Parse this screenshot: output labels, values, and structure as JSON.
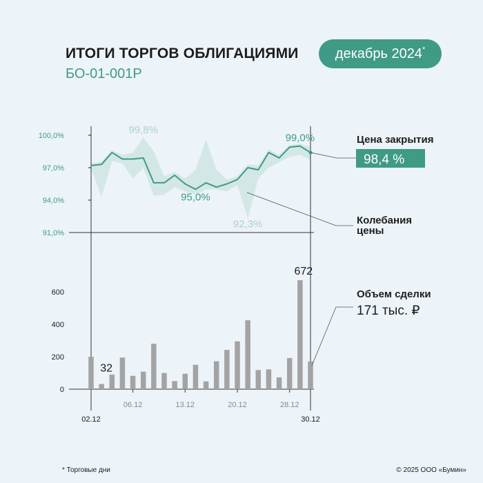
{
  "header": {
    "title": "ИТОГИ ТОРГОВ ОБЛИГАЦИЯМИ",
    "subtitle": "БО-01-001Р",
    "period": "декабрь 2024",
    "period_mark": "*"
  },
  "legend": {
    "close_price_label": "Цена закрытия",
    "close_price_value": "98,4 %",
    "range_label_line1": "Колебания",
    "range_label_line2": "цены",
    "volume_label": "Объем сделки",
    "volume_value": "171 тыс. ₽"
  },
  "footer": {
    "footnote": "* Торговые дни",
    "copyright": "© 2025 ООО «Бумин»"
  },
  "colors": {
    "accent": "#3f9a86",
    "band": "#d3e8e6",
    "bars": "#a3a3a3",
    "text": "#1d1d1b",
    "muted_label": "#a9d3cb"
  },
  "chart_data": [
    {
      "type": "line",
      "series": [
        {
          "name": "Цена закрытия",
          "values": [
            97.2,
            97.3,
            98.4,
            97.8,
            97.8,
            97.9,
            95.6,
            95.6,
            96.3,
            95.5,
            95.0,
            95.6,
            95.2,
            95.5,
            95.9,
            97.0,
            96.8,
            98.4,
            97.9,
            98.9,
            99.0,
            98.4
          ]
        },
        {
          "name": "Колебания цены (max)",
          "values": [
            97.4,
            97.6,
            98.6,
            98.2,
            98.4,
            99.8,
            98.5,
            96.2,
            96.6,
            96.0,
            96.8,
            99.6,
            96.8,
            95.9,
            96.2,
            97.3,
            97.2,
            98.7,
            98.2,
            99.1,
            99.2,
            98.9
          ]
        },
        {
          "name": "Колебания цены (min)",
          "values": [
            96.9,
            94.3,
            97.6,
            97.4,
            96.0,
            97.0,
            94.4,
            94.5,
            95.2,
            94.8,
            94.5,
            95.0,
            95.0,
            94.8,
            95.4,
            92.3,
            96.0,
            97.0,
            97.5,
            98.0,
            98.2,
            97.7
          ]
        }
      ],
      "ylim": [
        91.0,
        100.0
      ],
      "yticks": [
        "100,0%",
        "97,0%",
        "94,0%",
        "91,0%"
      ],
      "annotations": [
        {
          "label": "99,8%",
          "day": 5,
          "value": 99.8
        },
        {
          "label": "99,0%",
          "day": 20,
          "value": 99.0
        },
        {
          "label": "95,0%",
          "day": 10,
          "value": 95.0
        },
        {
          "label": "92,3%",
          "day": 15,
          "value": 92.3
        }
      ]
    },
    {
      "type": "bar",
      "values": [
        200,
        32,
        90,
        195,
        82,
        108,
        280,
        100,
        50,
        95,
        150,
        48,
        172,
        242,
        295,
        425,
        118,
        122,
        73,
        192,
        672,
        171
      ],
      "ylim": [
        0,
        700
      ],
      "yticks": [
        "600",
        "400",
        "200",
        "0"
      ],
      "xticks": [
        {
          "index": 4,
          "label": "06.12"
        },
        {
          "index": 9,
          "label": "13.12"
        },
        {
          "index": 14,
          "label": "20.12"
        },
        {
          "index": 19,
          "label": "28.12"
        }
      ],
      "endpoints": {
        "start": "02.12",
        "end": "30.12"
      },
      "data_labels": [
        {
          "index": 1,
          "label": "32"
        },
        {
          "index": 20,
          "label": "672"
        }
      ]
    }
  ]
}
